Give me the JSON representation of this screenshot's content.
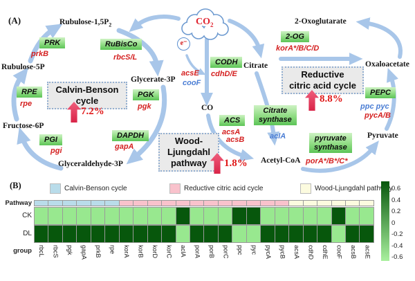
{
  "panelA": {
    "label": "(A)",
    "cloud": {
      "main": "CO",
      "sub": "2"
    },
    "electron": "e⁻",
    "metabolites": {
      "rubulose15p2": {
        "main": "Rubulose-1,5P",
        "sub": "2"
      },
      "oxoglutarate": "2-Oxoglutarate",
      "rubulose5p": "Rubulose-5P",
      "glycerate3p": "Glycerate-3P",
      "citrate": "Citrate",
      "oxaloacetate": "Oxaloacetate",
      "fructose6p": "Fructose-6P",
      "co": "CO",
      "glyceraldehyde3p": "Glyceraldehyde-3P",
      "acetylcoa": "Acetyl-CoA",
      "pyruvate": "Pyruvate"
    },
    "enzymes": {
      "prk": "PRK",
      "rubisco": "RuBisCo",
      "rpe": "RPE",
      "pgk": "PGK",
      "pgi": "PGI",
      "dapdh": "DAPDH",
      "codh": "CODH",
      "acs": "ACS",
      "og2": "2-OG",
      "citrate_synthase_l1": "Citrate",
      "citrate_synthase_l2": "synthase",
      "pyruvate_synthase_l1": "pyruvate",
      "pyruvate_synthase_l2": "synthase",
      "pepc": "PEPC"
    },
    "genes": {
      "prkB": "prkB",
      "rbcSL": "rbcS/L",
      "rpe": "rpe",
      "pgk": "pgk",
      "pgi": "pgi",
      "gapA": "gapA",
      "acsE": "acsE",
      "cooF": "cooF",
      "cdhDE": "cdhD/E",
      "acsA": "acsA",
      "acsB": "acsB",
      "korABCD": "korA*/B/C/D",
      "aclA": "aclA",
      "porABC": "porA*/B*/C*",
      "ppc_pyc": "ppc pyc",
      "pycAB": "pycA/B"
    },
    "cycles": {
      "calvin": {
        "line1": "Calvin-Benson",
        "line2": "cycle",
        "pct": "7.2%"
      },
      "wood": {
        "line1": "Wood-",
        "line2": "Ljungdahl",
        "line3": "pathway",
        "pct": "1.8%"
      },
      "rtca": {
        "line1": "Reductive",
        "line2": "citric acid cycle",
        "pct": "8.8%"
      }
    }
  },
  "panelB": {
    "label": "(B)"
  },
  "chart_data": {
    "type": "heatmap",
    "pathway_row_label": "Pathway",
    "group_label": "group",
    "columns": [
      "rbcL",
      "rbcS",
      "pgk",
      "gapA",
      "prkB",
      "rpe",
      "korA",
      "korB",
      "korD",
      "korC",
      "aclA",
      "porA",
      "porB",
      "porC",
      "ppc",
      "pyc",
      "pycA",
      "pycB",
      "acsA",
      "cdhD",
      "cdhE",
      "cooF",
      "acsB",
      "acsE"
    ],
    "column_groups": [
      {
        "name": "Calvin-Benson cycle",
        "color": "#b9dcea",
        "span": [
          0,
          5
        ]
      },
      {
        "name": "Reductive citric acid cycle",
        "color": "#f9c2cc",
        "span": [
          6,
          17
        ]
      },
      {
        "name": "Wood-Ljungdahl pathway",
        "color": "#fcfbdf",
        "span": [
          18,
          23
        ]
      }
    ],
    "series": [
      {
        "name": "CK",
        "values": [
          -0.5,
          -0.5,
          -0.5,
          -0.5,
          -0.5,
          -0.5,
          -0.5,
          -0.5,
          -0.5,
          -0.5,
          0.6,
          -0.5,
          -0.5,
          -0.5,
          0.6,
          0.6,
          -0.5,
          -0.5,
          -0.5,
          -0.5,
          -0.5,
          0.6,
          -0.5,
          -0.5
        ]
      },
      {
        "name": "DL",
        "values": [
          0.6,
          0.6,
          0.6,
          0.6,
          0.6,
          0.6,
          0.6,
          0.6,
          0.6,
          0.6,
          -0.5,
          0.6,
          0.6,
          0.6,
          -0.5,
          -0.5,
          0.6,
          0.6,
          0.6,
          0.6,
          0.6,
          -0.5,
          0.6,
          0.6
        ]
      }
    ],
    "cell_colors": {
      "high": "#07570c",
      "low": "#98e88f"
    },
    "colorbar": {
      "ticks": [
        "0.6",
        "0.4",
        "0.2",
        "0",
        "-0.2",
        "-0.4",
        "-0.6"
      ],
      "max_color": "#07570c",
      "min_color": "#a9f09e"
    }
  }
}
